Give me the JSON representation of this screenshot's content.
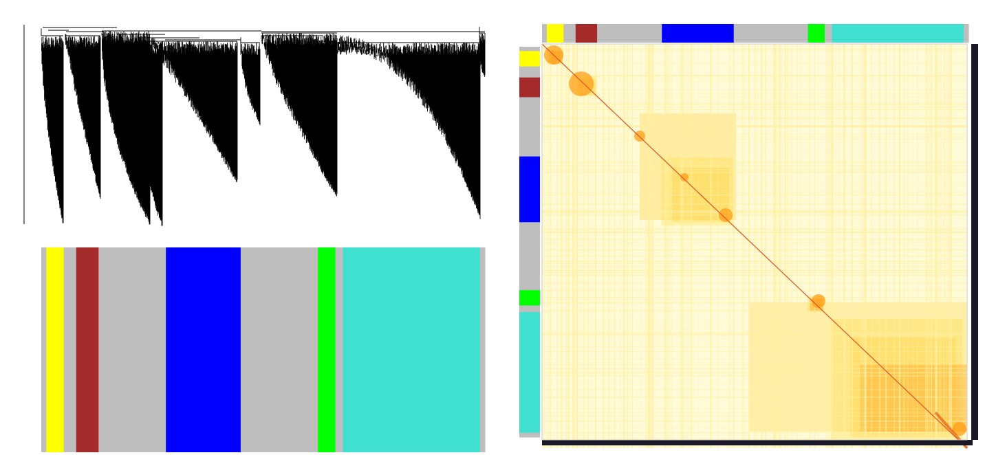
{
  "figure": {
    "panels": [
      "gene-dendrogram",
      "module-color-bar",
      "tom-heatmap"
    ]
  },
  "modules": [
    {
      "color": "#bebebe",
      "weight": 2
    },
    {
      "color": "#ffff00",
      "weight": 7
    },
    {
      "color": "#bebebe",
      "weight": 5
    },
    {
      "color": "#a52a2a",
      "weight": 9
    },
    {
      "color": "#bebebe",
      "weight": 27
    },
    {
      "color": "#0000ff",
      "weight": 30
    },
    {
      "color": "#bebebe",
      "weight": 31
    },
    {
      "color": "#00ff00",
      "weight": 7
    },
    {
      "color": "#bebebe",
      "weight": 3
    },
    {
      "color": "#40e0d0",
      "weight": 55
    },
    {
      "color": "#bebebe",
      "weight": 2
    }
  ],
  "heatmap_colors": {
    "background": "#fffbd9",
    "low": "#fff0a0",
    "mid": "#ffd23c",
    "high": "#ff9a10",
    "peak": "#e04a00",
    "diagonal": "#e05a2a"
  },
  "dendrogram_color": "#000000"
}
